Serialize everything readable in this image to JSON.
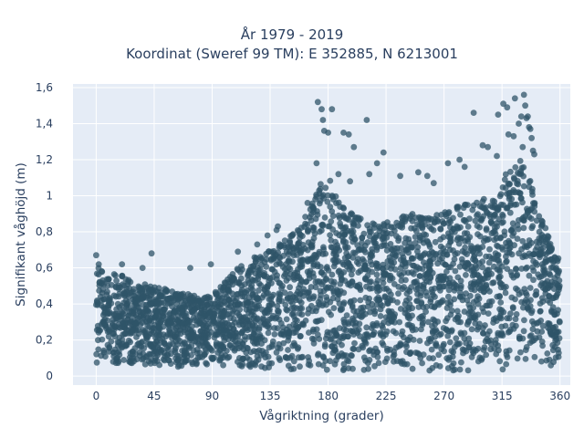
{
  "title": {
    "line1": "År 1979 - 2019",
    "line2": "Koordinat (Sweref 99 TM): E 352885, N 6213001"
  },
  "chart_data": {
    "type": "scatter",
    "title": "År 1979 - 2019 — Koordinat (Sweref 99 TM): E 352885, N 6213001",
    "xlabel": "Vågriktning (grader)",
    "ylabel": "Signifikant våghöjd (m)",
    "xlim": [
      -18,
      368
    ],
    "ylim": [
      -0.05,
      1.62
    ],
    "xticks": [
      0,
      45,
      90,
      135,
      180,
      225,
      270,
      315,
      360
    ],
    "xtick_labels": [
      "0",
      "45",
      "90",
      "135",
      "180",
      "225",
      "270",
      "315",
      "360"
    ],
    "yticks": [
      0,
      0.2,
      0.4,
      0.6,
      0.8,
      1.0,
      1.2,
      1.4,
      1.6
    ],
    "ytick_labels": [
      "0",
      "0,2",
      "0,4",
      "0,6",
      "0,8",
      "1",
      "1,2",
      "1,4",
      "1,6"
    ],
    "grid": true,
    "marker_color": "#2f5468",
    "background_color": "#e5ecf6",
    "envelope": {
      "x": [
        0,
        2,
        5,
        10,
        20,
        30,
        45,
        60,
        75,
        90,
        100,
        110,
        120,
        130,
        135,
        145,
        155,
        165,
        170,
        175,
        180,
        185,
        190,
        200,
        210,
        220,
        225,
        235,
        245,
        255,
        260,
        270,
        280,
        290,
        300,
        310,
        315,
        320,
        325,
        330,
        335,
        340,
        345,
        350,
        355,
        360
      ],
      "y_max": [
        0.64,
        0.62,
        0.58,
        0.57,
        0.56,
        0.52,
        0.5,
        0.47,
        0.45,
        0.45,
        0.52,
        0.6,
        0.65,
        0.68,
        0.71,
        0.75,
        0.8,
        0.92,
        1.0,
        1.08,
        1.12,
        1.05,
        0.95,
        0.9,
        0.85,
        0.85,
        0.88,
        0.88,
        0.9,
        0.88,
        0.9,
        0.92,
        0.94,
        0.96,
        0.98,
        1.05,
        1.1,
        1.15,
        1.18,
        1.22,
        1.15,
        1.0,
        0.9,
        0.8,
        0.7,
        0.64
      ],
      "y_min": [
        0.07,
        0.07,
        0.07,
        0.06,
        0.06,
        0.05,
        0.05,
        0.05,
        0.05,
        0.05,
        0.05,
        0.04,
        0.04,
        0.04,
        0.04,
        0.03,
        0.03,
        0.03,
        0.02,
        0.02,
        0.02,
        0.02,
        0.02,
        0.03,
        0.03,
        0.03,
        0.03,
        0.03,
        0.03,
        0.03,
        0.03,
        0.03,
        0.03,
        0.03,
        0.03,
        0.03,
        0.03,
        0.04,
        0.04,
        0.05,
        0.05,
        0.05,
        0.05,
        0.05,
        0.05,
        0.05
      ]
    },
    "outliers": {
      "x": [
        0,
        2,
        20,
        36,
        43,
        73,
        89,
        110,
        125,
        133,
        140,
        141,
        164,
        171,
        172,
        175,
        176,
        177,
        180,
        183,
        188,
        192,
        196,
        197,
        200,
        210,
        212,
        218,
        223,
        236,
        250,
        257,
        262,
        273,
        282,
        286,
        293,
        300,
        304,
        311,
        312,
        316,
        319,
        320,
        324,
        325,
        328,
        330,
        331,
        332,
        333,
        334,
        335,
        336,
        337,
        338,
        339,
        340
      ],
      "y": [
        0.67,
        0.62,
        0.62,
        0.6,
        0.68,
        0.6,
        0.62,
        0.69,
        0.73,
        0.78,
        0.81,
        0.83,
        0.96,
        1.18,
        1.52,
        1.48,
        1.42,
        1.36,
        1.35,
        1.48,
        1.12,
        1.35,
        1.34,
        1.08,
        1.27,
        1.42,
        1.12,
        1.18,
        1.24,
        1.11,
        1.13,
        1.11,
        1.07,
        1.18,
        1.2,
        1.16,
        1.46,
        1.28,
        1.27,
        1.22,
        1.45,
        1.51,
        1.49,
        1.34,
        1.33,
        1.54,
        1.4,
        1.44,
        1.27,
        1.56,
        1.5,
        1.43,
        1.44,
        1.38,
        1.37,
        1.32,
        1.25,
        1.23
      ]
    },
    "n_points": 3200
  }
}
